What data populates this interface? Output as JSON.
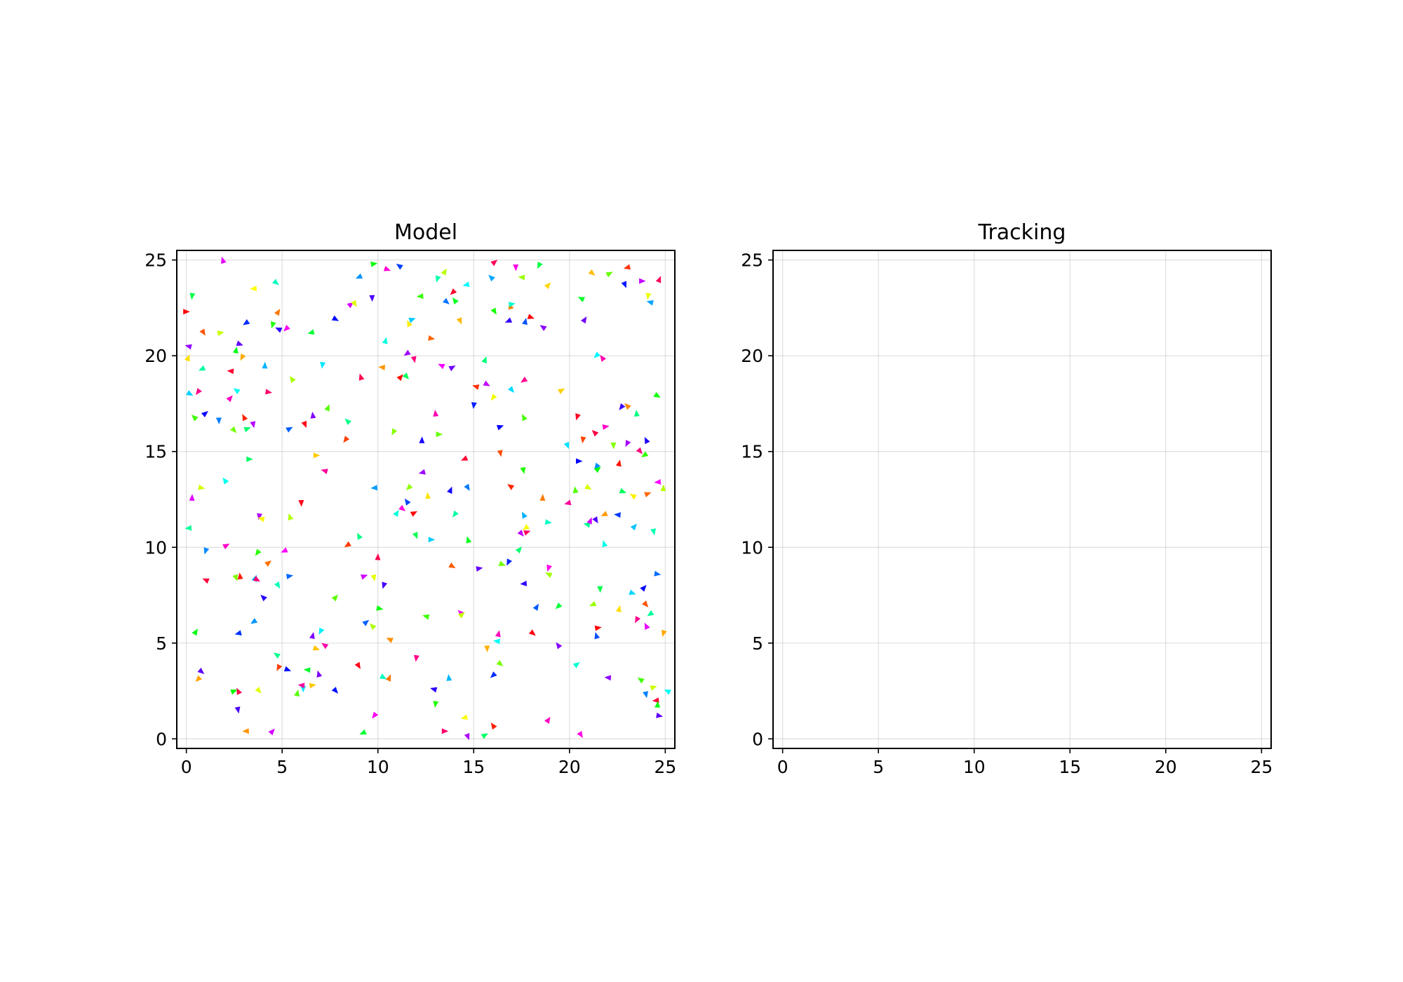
{
  "chart_data": [
    {
      "type": "scatter",
      "title": "Model",
      "xlabel": "",
      "ylabel": "",
      "xlim": [
        -0.5,
        25.5
      ],
      "ylim": [
        -0.5,
        25.5
      ],
      "xticks": [
        "0",
        "5",
        "10",
        "15",
        "20",
        "25"
      ],
      "yticks": [
        "0",
        "5",
        "10",
        "15",
        "20",
        "25"
      ],
      "grid": true,
      "marker": "triangle (direction-oriented), colored by heading (hsv)",
      "points": [
        [
          0.0,
          22.3
        ],
        [
          0.3,
          23.1
        ],
        [
          0.1,
          20.5
        ],
        [
          0.1,
          19.9
        ],
        [
          0.2,
          18.0
        ],
        [
          0.6,
          18.1
        ],
        [
          0.4,
          16.8
        ],
        [
          1.0,
          17.0
        ],
        [
          0.9,
          21.2
        ],
        [
          0.8,
          19.3
        ],
        [
          1.9,
          25.0
        ],
        [
          1.8,
          21.2
        ],
        [
          1.7,
          16.6
        ],
        [
          2.3,
          19.2
        ],
        [
          2.6,
          20.3
        ],
        [
          2.8,
          20.6
        ],
        [
          2.9,
          19.9
        ],
        [
          2.6,
          18.2
        ],
        [
          2.3,
          17.8
        ],
        [
          2.5,
          16.1
        ],
        [
          3.1,
          21.7
        ],
        [
          3.0,
          16.8
        ],
        [
          3.2,
          16.2
        ],
        [
          3.5,
          16.4
        ],
        [
          3.5,
          23.5
        ],
        [
          4.1,
          19.5
        ],
        [
          4.3,
          18.1
        ],
        [
          4.5,
          21.6
        ],
        [
          4.8,
          21.4
        ],
        [
          4.8,
          22.3
        ],
        [
          4.7,
          23.8
        ],
        [
          5.2,
          21.4
        ],
        [
          5.5,
          18.8
        ],
        [
          5.4,
          16.2
        ],
        [
          6.2,
          16.4
        ],
        [
          6.5,
          21.2
        ],
        [
          6.6,
          16.9
        ],
        [
          6.8,
          14.8
        ],
        [
          7.1,
          19.5
        ],
        [
          7.2,
          14.0
        ],
        [
          7.4,
          17.3
        ],
        [
          7.8,
          21.9
        ],
        [
          8.3,
          15.6
        ],
        [
          8.4,
          16.6
        ],
        [
          8.6,
          22.7
        ],
        [
          8.8,
          22.7
        ],
        [
          9.0,
          24.1
        ],
        [
          9.1,
          18.9
        ],
        [
          9.8,
          24.8
        ],
        [
          9.7,
          23.0
        ],
        [
          10.2,
          19.4
        ],
        [
          10.4,
          20.8
        ],
        [
          10.5,
          24.5
        ],
        [
          10.8,
          16.0
        ],
        [
          11.1,
          24.7
        ],
        [
          11.2,
          18.9
        ],
        [
          11.5,
          18.9
        ],
        [
          11.5,
          20.1
        ],
        [
          11.6,
          21.7
        ],
        [
          11.8,
          21.9
        ],
        [
          11.9,
          19.8
        ],
        [
          12.2,
          23.1
        ],
        [
          12.3,
          15.6
        ],
        [
          12.8,
          20.9
        ],
        [
          13.1,
          24.0
        ],
        [
          13.3,
          19.5
        ],
        [
          13.5,
          24.4
        ],
        [
          13.6,
          22.8
        ],
        [
          13.9,
          23.3
        ],
        [
          14.0,
          22.9
        ],
        [
          13.9,
          19.4
        ],
        [
          14.3,
          21.8
        ],
        [
          14.6,
          23.7
        ],
        [
          13.0,
          17.0
        ],
        [
          13.2,
          15.9
        ],
        [
          15.0,
          17.4
        ],
        [
          15.1,
          18.4
        ],
        [
          15.6,
          19.8
        ],
        [
          15.7,
          18.5
        ],
        [
          16.0,
          17.8
        ],
        [
          15.9,
          24.1
        ],
        [
          16.1,
          24.9
        ],
        [
          16.1,
          22.3
        ],
        [
          16.8,
          21.8
        ],
        [
          16.9,
          22.6
        ],
        [
          17.0,
          22.7
        ],
        [
          17.2,
          24.6
        ],
        [
          17.5,
          24.1
        ],
        [
          17.7,
          21.8
        ],
        [
          18.0,
          22.0
        ],
        [
          18.4,
          24.7
        ],
        [
          18.6,
          21.5
        ],
        [
          18.9,
          23.7
        ],
        [
          17.0,
          18.2
        ],
        [
          17.6,
          18.7
        ],
        [
          17.6,
          16.8
        ],
        [
          16.4,
          16.3
        ],
        [
          16.4,
          14.9
        ],
        [
          0.1,
          11.0
        ],
        [
          0.3,
          12.6
        ],
        [
          0.8,
          13.1
        ],
        [
          1.0,
          9.8
        ],
        [
          1.0,
          8.3
        ],
        [
          0.5,
          5.6
        ],
        [
          0.8,
          3.5
        ],
        [
          0.6,
          3.1
        ],
        [
          2.0,
          13.5
        ],
        [
          2.1,
          10.1
        ],
        [
          2.6,
          8.4
        ],
        [
          2.7,
          5.5
        ],
        [
          2.8,
          8.5
        ],
        [
          3.3,
          14.6
        ],
        [
          3.8,
          11.6
        ],
        [
          3.9,
          11.5
        ],
        [
          3.6,
          8.4
        ],
        [
          3.7,
          8.3
        ],
        [
          3.7,
          9.7
        ],
        [
          4.0,
          7.4
        ],
        [
          4.3,
          9.2
        ],
        [
          4.8,
          8.0
        ],
        [
          5.1,
          9.8
        ],
        [
          5.4,
          11.6
        ],
        [
          5.4,
          8.5
        ],
        [
          6.0,
          12.3
        ],
        [
          6.3,
          3.6
        ],
        [
          6.6,
          5.4
        ],
        [
          6.8,
          4.7
        ],
        [
          7.0,
          5.6
        ],
        [
          7.2,
          4.9
        ],
        [
          7.8,
          7.4
        ],
        [
          7.8,
          2.5
        ],
        [
          8.4,
          10.1
        ],
        [
          9.0,
          10.6
        ],
        [
          9.3,
          8.5
        ],
        [
          9.8,
          8.4
        ],
        [
          9.8,
          13.1
        ],
        [
          10.0,
          9.5
        ],
        [
          10.1,
          6.8
        ],
        [
          10.3,
          8.0
        ],
        [
          10.6,
          5.2
        ],
        [
          11.0,
          11.8
        ],
        [
          11.3,
          12.0
        ],
        [
          11.6,
          13.1
        ],
        [
          11.5,
          12.4
        ],
        [
          11.9,
          11.8
        ],
        [
          12.0,
          10.6
        ],
        [
          12.3,
          13.9
        ],
        [
          12.6,
          12.7
        ],
        [
          12.8,
          10.4
        ],
        [
          12.0,
          4.2
        ],
        [
          12.5,
          6.4
        ],
        [
          13.8,
          13.0
        ],
        [
          13.9,
          9.0
        ],
        [
          14.0,
          11.7
        ],
        [
          14.3,
          6.6
        ],
        [
          14.4,
          6.5
        ],
        [
          14.7,
          13.1
        ],
        [
          14.5,
          14.6
        ],
        [
          14.7,
          10.4
        ],
        [
          15.3,
          8.9
        ],
        [
          15.7,
          4.7
        ],
        [
          16.2,
          5.1
        ],
        [
          16.3,
          5.5
        ],
        [
          16.5,
          9.1
        ],
        [
          16.8,
          9.2
        ],
        [
          16.9,
          13.2
        ],
        [
          17.4,
          9.9
        ],
        [
          17.5,
          10.7
        ],
        [
          17.7,
          11.0
        ],
        [
          17.6,
          11.7
        ],
        [
          17.8,
          10.8
        ],
        [
          17.6,
          14.0
        ],
        [
          17.6,
          8.1
        ],
        [
          18.6,
          12.6
        ],
        [
          18.9,
          11.3
        ],
        [
          18.9,
          8.9
        ],
        [
          18.9,
          8.6
        ],
        [
          18.3,
          6.9
        ],
        [
          18.1,
          5.5
        ],
        [
          19.4,
          6.9
        ],
        [
          19.4,
          4.9
        ],
        [
          19.6,
          18.2
        ],
        [
          19.9,
          15.3
        ],
        [
          19.9,
          12.3
        ],
        [
          20.3,
          13.0
        ],
        [
          20.5,
          14.5
        ],
        [
          20.7,
          15.6
        ],
        [
          20.9,
          11.2
        ],
        [
          21.1,
          11.4
        ],
        [
          21.0,
          13.1
        ],
        [
          21.4,
          14.2
        ],
        [
          21.3,
          16.0
        ],
        [
          21.5,
          14.1
        ],
        [
          21.4,
          11.4
        ],
        [
          21.8,
          11.7
        ],
        [
          21.8,
          10.2
        ],
        [
          21.9,
          16.3
        ],
        [
          22.3,
          15.3
        ],
        [
          22.5,
          11.7
        ],
        [
          22.6,
          14.4
        ],
        [
          22.8,
          12.9
        ],
        [
          23.0,
          15.4
        ],
        [
          23.3,
          12.7
        ],
        [
          23.4,
          11.1
        ],
        [
          23.7,
          15.0
        ],
        [
          23.9,
          14.8
        ],
        [
          24.0,
          15.6
        ],
        [
          24.1,
          12.8
        ],
        [
          24.4,
          10.8
        ],
        [
          24.6,
          13.4
        ],
        [
          24.9,
          13.1
        ],
        [
          24.6,
          8.6
        ],
        [
          20.4,
          16.8
        ],
        [
          20.6,
          23.0
        ],
        [
          20.8,
          21.9
        ],
        [
          21.2,
          24.3
        ],
        [
          21.4,
          20.0
        ],
        [
          21.7,
          19.9
        ],
        [
          22.1,
          24.3
        ],
        [
          22.9,
          23.7
        ],
        [
          23.0,
          24.6
        ],
        [
          23.5,
          17.0
        ],
        [
          23.8,
          23.9
        ],
        [
          24.1,
          23.1
        ],
        [
          24.2,
          22.8
        ],
        [
          24.7,
          24.0
        ],
        [
          24.6,
          17.9
        ],
        [
          22.7,
          17.3
        ],
        [
          23.0,
          17.4
        ],
        [
          20.4,
          3.9
        ],
        [
          20.6,
          0.2
        ],
        [
          21.2,
          7.0
        ],
        [
          21.4,
          5.4
        ],
        [
          21.5,
          5.8
        ],
        [
          21.6,
          7.8
        ],
        [
          22.0,
          3.2
        ],
        [
          22.6,
          6.8
        ],
        [
          23.3,
          7.6
        ],
        [
          23.5,
          6.2
        ],
        [
          23.7,
          3.1
        ],
        [
          23.9,
          7.9
        ],
        [
          24.0,
          7.0
        ],
        [
          24.2,
          6.5
        ],
        [
          24.0,
          5.9
        ],
        [
          24.4,
          2.7
        ],
        [
          24.0,
          2.3
        ],
        [
          24.5,
          2.0
        ],
        [
          24.6,
          1.8
        ],
        [
          24.7,
          1.2
        ],
        [
          24.9,
          5.5
        ],
        [
          25.1,
          2.5
        ],
        [
          18.9,
          1.0
        ],
        [
          16.4,
          3.9
        ],
        [
          16.0,
          3.3
        ],
        [
          16.0,
          0.7
        ],
        [
          15.6,
          0.2
        ],
        [
          14.7,
          0.1
        ],
        [
          14.5,
          1.1
        ],
        [
          13.7,
          3.2
        ],
        [
          13.5,
          0.4
        ],
        [
          13.0,
          1.8
        ],
        [
          12.9,
          2.6
        ],
        [
          10.6,
          3.2
        ],
        [
          10.3,
          3.2
        ],
        [
          9.8,
          1.2
        ],
        [
          9.7,
          5.9
        ],
        [
          9.4,
          6.1
        ],
        [
          9.0,
          3.8
        ],
        [
          9.2,
          0.3
        ],
        [
          6.9,
          3.4
        ],
        [
          6.6,
          2.8
        ],
        [
          6.1,
          2.6
        ],
        [
          6.0,
          2.8
        ],
        [
          5.8,
          2.4
        ],
        [
          5.3,
          3.6
        ],
        [
          4.8,
          3.7
        ],
        [
          4.7,
          4.4
        ],
        [
          4.5,
          0.4
        ],
        [
          3.8,
          2.5
        ],
        [
          3.5,
          6.1
        ],
        [
          2.7,
          2.5
        ],
        [
          2.5,
          2.5
        ],
        [
          2.7,
          1.5
        ],
        [
          3.1,
          0.4
        ]
      ]
    },
    {
      "type": "scatter",
      "title": "Tracking",
      "xlabel": "",
      "ylabel": "",
      "xlim": [
        -0.5,
        25.5
      ],
      "ylim": [
        -0.5,
        25.5
      ],
      "xticks": [
        "0",
        "5",
        "10",
        "15",
        "20",
        "25"
      ],
      "yticks": [
        "0",
        "5",
        "10",
        "15",
        "20",
        "25"
      ],
      "grid": true,
      "points": []
    }
  ]
}
